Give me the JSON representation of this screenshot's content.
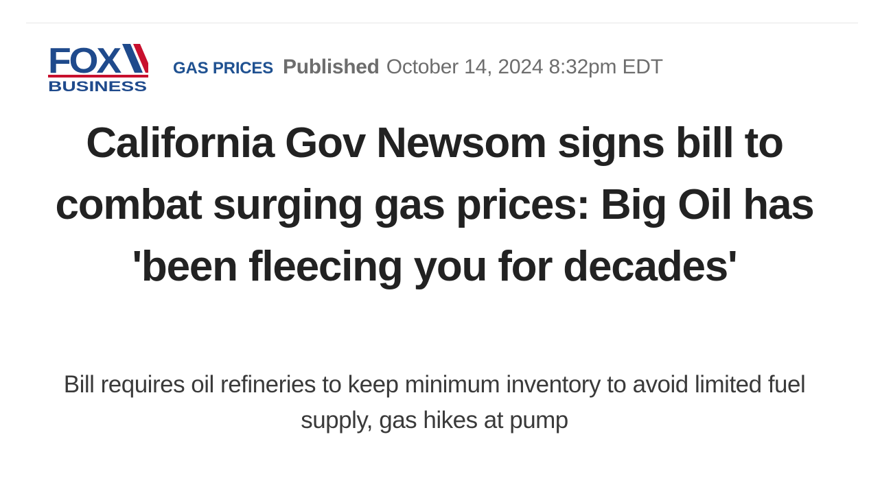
{
  "brand": {
    "logo_top": "FOX",
    "logo_bottom": "BUSINESS",
    "colors": {
      "navy": "#1f4a8c",
      "red": "#c8102e"
    }
  },
  "article": {
    "category": "GAS PRICES",
    "published_label": "Published",
    "published_date": "October 14, 2024 8:32pm EDT",
    "headline": "California Gov Newsom signs bill to combat surging gas prices: Big Oil has 'been fleecing you for decades'",
    "subheadline": "Bill requires oil refineries to keep minimum inventory to avoid limited fuel supply, gas hikes at pump"
  }
}
